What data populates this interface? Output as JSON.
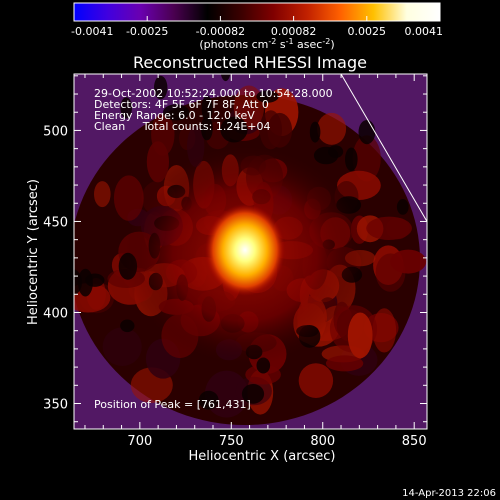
{
  "colorbar": {
    "ticks": [
      "-0.0041",
      "-0.0025",
      "-0.00082",
      "0.00082",
      "0.0025",
      "0.0041"
    ],
    "unit_main": "(photons cm",
    "unit_exp1": "-2",
    "unit_mid": " s",
    "unit_exp2": "-1",
    "unit_mid2": " asec",
    "unit_exp3": "-2",
    "unit_end": ")",
    "colors": [
      "#0000ff",
      "#4000e0",
      "#6a00b0",
      "#4a0050",
      "#000000",
      "#3a0000",
      "#800000",
      "#c02000",
      "#ff6000",
      "#ffc000",
      "#ffffe0",
      "#ffffff"
    ]
  },
  "chart_data": {
    "type": "heatmap",
    "title": "Reconstructed RHESSI Image",
    "xlabel": "Heliocentric X (arcsec)",
    "ylabel": "Heliocentric Y (arcsec)",
    "xlim": [
      664,
      857
    ],
    "ylim": [
      336,
      531
    ],
    "xticks": [
      "700",
      "750",
      "800",
      "850"
    ],
    "xtick_values": [
      700,
      750,
      800,
      850
    ],
    "yticks": [
      "350",
      "400",
      "450",
      "500"
    ],
    "ytick_values": [
      350,
      400,
      450,
      500
    ],
    "info_lines": [
      "29-Oct-2002 10:52:24.000 to 10:54:28.000",
      "Detectors: 4F 5F 6F 7F 8F, Att 0",
      "Energy Range: 6.0 - 12.0 keV",
      "Clean     Total counts: 1.24E+04"
    ],
    "peak_label": "Position of Peak = [761,431]",
    "peak": [
      761,
      431
    ],
    "limb_line": [
      [
        810,
        531
      ],
      [
        857,
        450
      ]
    ]
  },
  "footer": {
    "date": "14-Apr-2013 22:06"
  }
}
